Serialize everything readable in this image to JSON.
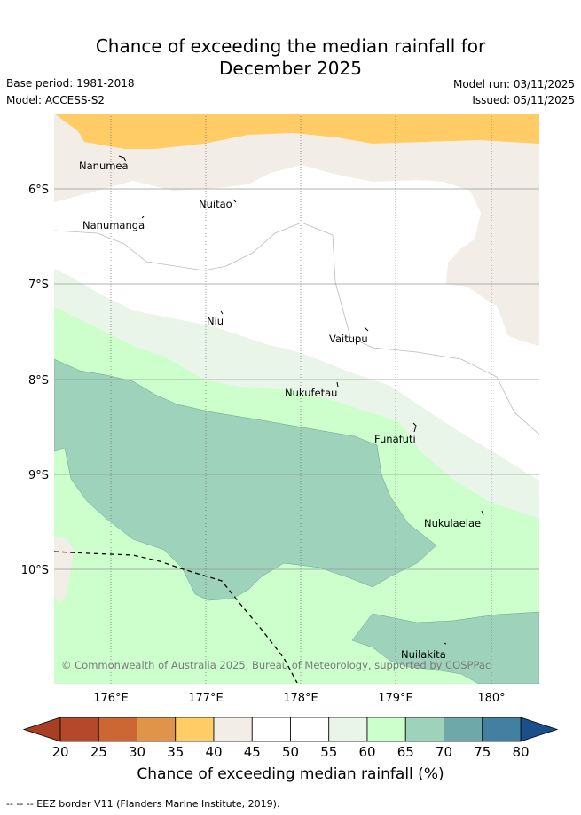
{
  "title_line1": "Chance of exceeding the median rainfall for",
  "title_line2": "December 2025",
  "base_period": "Base period: 1981-2018",
  "model": "Model: ACCESS-S2",
  "model_run": "Model run: 03/11/2025",
  "issued": "Issued: 05/11/2025",
  "map": {
    "lat_labels": [
      "6°S",
      "7°S",
      "8°S",
      "9°S",
      "10°S"
    ],
    "lon_labels": [
      "176°E",
      "177°E",
      "178°E",
      "179°E",
      "180°"
    ],
    "islands": [
      {
        "name": "Nanumea"
      },
      {
        "name": "Nuitao"
      },
      {
        "name": "Nanumanga"
      },
      {
        "name": "Niu"
      },
      {
        "name": "Vaitupu"
      },
      {
        "name": "Nukufetau"
      },
      {
        "name": "Funafuti"
      },
      {
        "name": "Nukulaelae"
      },
      {
        "name": "Nuilakita"
      }
    ],
    "copyright": "© Commonwealth of Australia 2025, Bureau of Meteorology, supported by COSPPac"
  },
  "colorbar": {
    "ticks": [
      "20",
      "25",
      "30",
      "35",
      "40",
      "45",
      "50",
      "55",
      "60",
      "65",
      "70",
      "75",
      "80"
    ],
    "colors": [
      "#b5482a",
      "#cc6633",
      "#e0944a",
      "#ffcc66",
      "#f2ede6",
      "#ffffff",
      "#ffffff",
      "#eaf5ea",
      "#ccffcc",
      "#9ed2bb",
      "#6fa8a8",
      "#427fa0"
    ],
    "under_color": "#a83e22",
    "over_color": "#1a4f8a",
    "label": "Chance of exceeding median rainfall (%)"
  },
  "footnote": "-- -- -- EEZ border V11 (Flanders Marine Institute, 2019)."
}
